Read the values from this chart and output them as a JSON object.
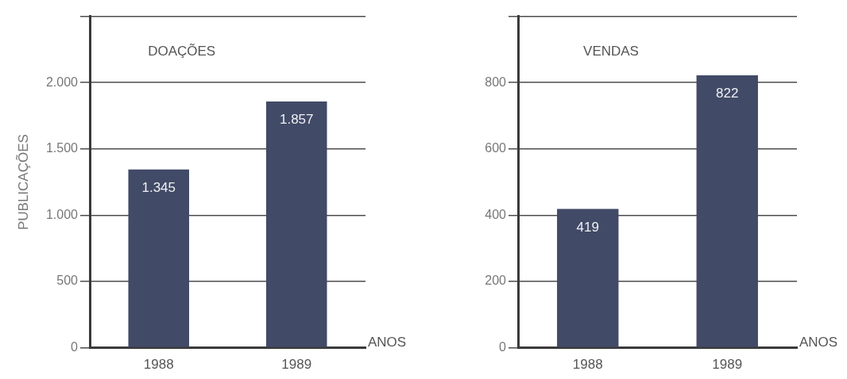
{
  "chart_data": [
    {
      "type": "bar",
      "title": "DOAÇÕES",
      "xlabel": "ANOS",
      "ylabel": "PUBLICAÇÕES",
      "categories": [
        "1988",
        "1989"
      ],
      "values": [
        1345,
        1857
      ],
      "value_labels": [
        "1.345",
        "1.857"
      ],
      "color": "#414a66",
      "ylim": [
        0,
        2500
      ],
      "yticks": [
        0,
        500,
        {
          "value": 1000,
          "label": "1.000"
        },
        {
          "value": 1500,
          "label": "1.500"
        },
        {
          "value": 2000,
          "label": "2.000"
        },
        {
          "value": 2500,
          "label": null
        }
      ],
      "grid": "y"
    },
    {
      "type": "bar",
      "title": "VENDAS",
      "xlabel": "ANOS",
      "categories": [
        "1988",
        "1989"
      ],
      "values": [
        419,
        822
      ],
      "data_labels": true,
      "color": "#414a66",
      "ylim": [
        0,
        1000
      ],
      "yticks": [
        0,
        200,
        400,
        600,
        800,
        {
          "value": 1000,
          "label": null
        }
      ],
      "grid": "y"
    }
  ]
}
